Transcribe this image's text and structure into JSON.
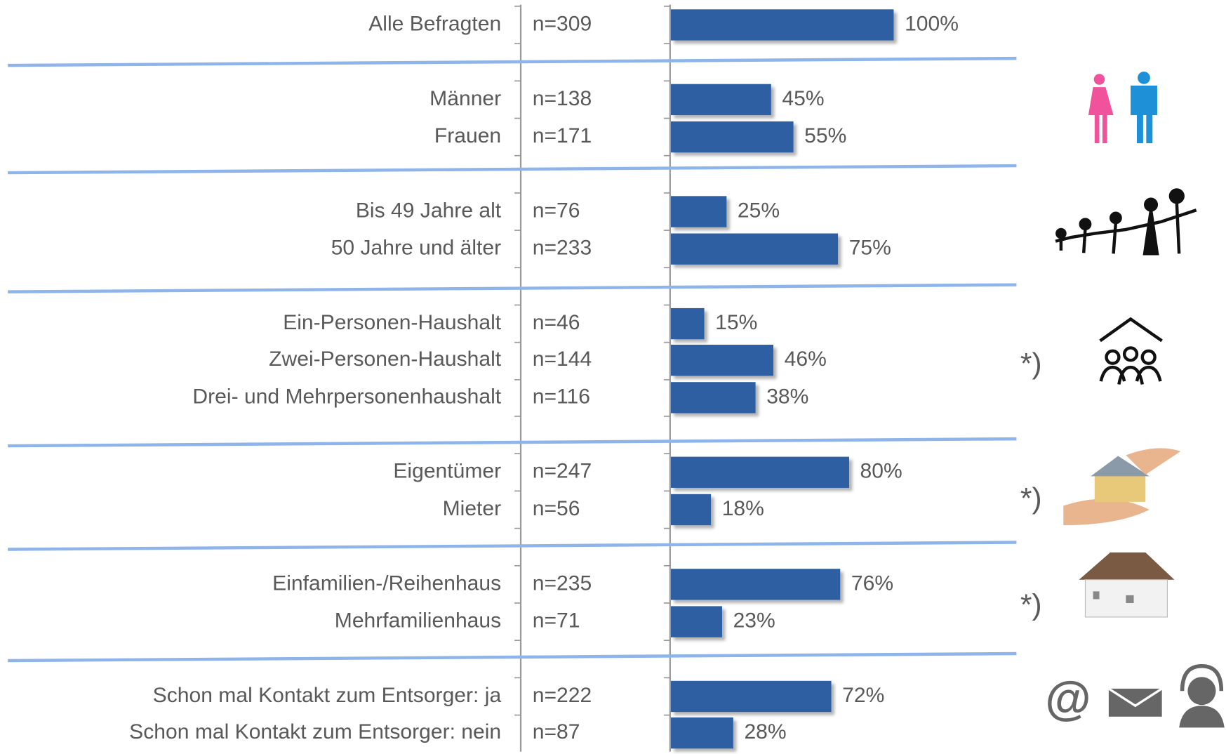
{
  "chart_data": {
    "type": "bar",
    "orientation": "horizontal",
    "categories": [
      "Alle Befragten",
      "Männer",
      "Frauen",
      "Bis 49 Jahre alt",
      "50 Jahre und älter",
      "Ein-Personen-Haushalt",
      "Zwei-Personen-Haushalt",
      "Drei- und Mehrpersonenhaushalt",
      "Eigentümer",
      "Mieter",
      "Einfamilien-/Reihenhaus",
      "Mehrfamilienhaus",
      "Schon mal Kontakt zum Entsorger: ja",
      "Schon mal Kontakt zum Entsorger: nein"
    ],
    "sample_sizes": [
      "n=309",
      "n=138",
      "n=171",
      "n=76",
      "n=233",
      "n=46",
      "n=144",
      "n=116",
      "n=247",
      "n=56",
      "n=235",
      "n=71",
      "n=222",
      "n=87"
    ],
    "values": [
      100,
      45,
      55,
      25,
      75,
      15,
      46,
      38,
      80,
      18,
      76,
      23,
      72,
      28
    ],
    "value_labels": [
      "100%",
      "45%",
      "55%",
      "25%",
      "75%",
      "15%",
      "46%",
      "38%",
      "80%",
      "18%",
      "76%",
      "23%",
      "72%",
      "28%"
    ],
    "color": "#2e5fa3",
    "xlim": [
      0,
      100
    ],
    "annotations": [
      "*)",
      "*)",
      "*)"
    ],
    "contact_icon_text": "@"
  }
}
